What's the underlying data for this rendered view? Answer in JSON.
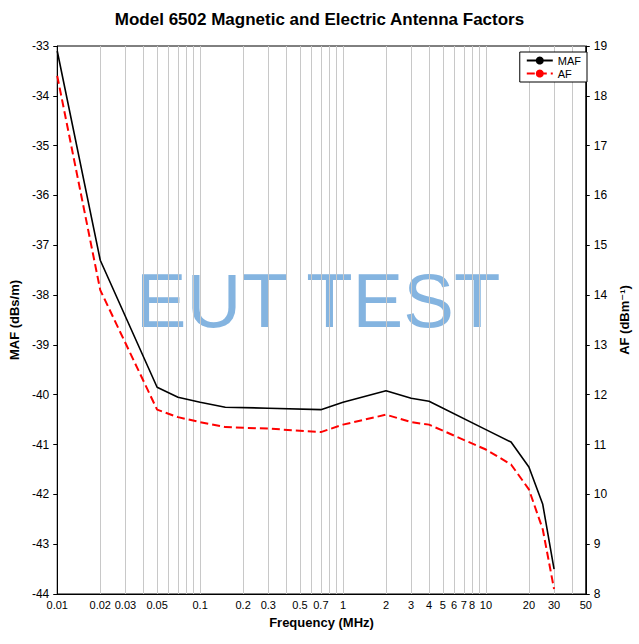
{
  "chart_data": {
    "type": "line",
    "title": "Model 6502 Magnetic and Electric Antenna Factors",
    "x_label": "Frequency (MHz)",
    "y_label": "MAF (dBs/m)",
    "y2_label": "AF (dBm⁻¹)",
    "annotations": [
      "EUT TEST"
    ],
    "log": "x",
    "grid": true,
    "legend": "upper right",
    "x": [
      0.01,
      0.02,
      0.05,
      0.07,
      0.1,
      0.15,
      0.3,
      0.7,
      1,
      2,
      3,
      4,
      10,
      15,
      20,
      25,
      30
    ],
    "series": [
      {
        "name": "MAF",
        "color": "#000000",
        "line_style": "solid",
        "values": [
          -33.1,
          -37.3,
          -39.85,
          -40.05,
          -40.15,
          -40.25,
          -40.27,
          -40.3,
          -40.15,
          -39.92,
          -40.07,
          -40.13,
          -40.7,
          -40.95,
          -41.45,
          -42.2,
          -43.5
        ]
      },
      {
        "name": "AF",
        "color": "#ff0000",
        "line_style": "dashed",
        "axis": "y2",
        "values": [
          18.4,
          14.1,
          11.7,
          11.55,
          11.45,
          11.35,
          11.32,
          11.25,
          11.4,
          11.6,
          11.45,
          11.4,
          10.9,
          10.6,
          10.1,
          9.3,
          8.1
        ]
      }
    ],
    "xlim": [
      0.01,
      50
    ],
    "xticks": [
      0.01,
      0.02,
      0.03,
      0.05,
      0.1,
      0.2,
      0.3,
      0.5,
      0.7,
      1,
      2,
      3,
      4,
      5,
      6,
      7,
      8,
      10,
      20,
      30,
      50
    ],
    "ylim": [
      -44,
      -33
    ],
    "yticks": [
      -44,
      -43,
      -42,
      -41,
      -40,
      -39,
      -38,
      -37,
      -36,
      -35,
      -34,
      -33
    ],
    "y2lim": [
      8,
      19
    ],
    "y2ticks": [
      8,
      9,
      10,
      11,
      12,
      13,
      14,
      15,
      16,
      17,
      18,
      19
    ]
  }
}
